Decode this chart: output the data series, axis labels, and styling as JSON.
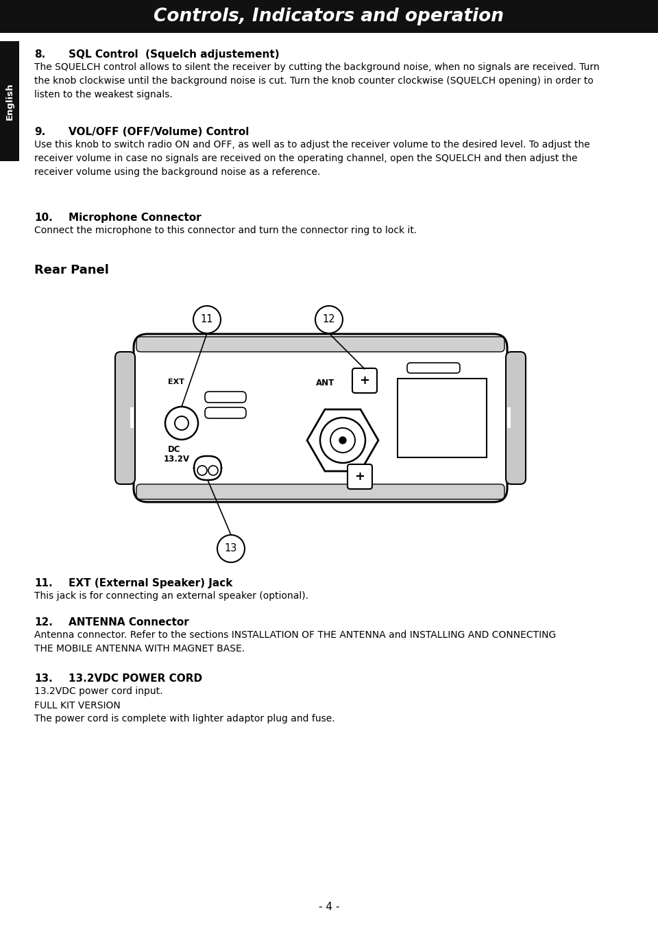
{
  "title": "Controls, Indicators and operation",
  "title_bg": "#111111",
  "title_color": "#ffffff",
  "page_bg": "#ffffff",
  "sidebar_bg": "#111111",
  "sidebar_text": "English",
  "page_number": "- 4 -",
  "sec8_heading": "SQL Control  (Squelch adjustement)",
  "sec8_body": "The SQUELCH control allows to silent the receiver by cutting the background noise, when no signals are received. Turn\nthe knob clockwise until the background noise is cut. Turn the knob counter clockwise (SQUELCH opening) in order to\nlisten to the weakest signals.",
  "sec9_heading": "VOL/OFF (OFF/Volume) Control",
  "sec9_body": "Use this knob to switch radio ON and OFF, as well as to adjust the receiver volume to the desired level. To adjust the\nreceiver volume in case no signals are received on the operating channel, open the SQUELCH and then adjust the\nreceiver volume using the background noise as a reference.",
  "sec10_heading": "Microphone Connector",
  "sec10_body": "Connect the microphone to this connector and turn the connector ring to lock it.",
  "rear_panel_label": "Rear Panel",
  "sec11_heading": "EXT (External Speaker) Jack",
  "sec11_body": "This jack is for connecting an external speaker (optional).",
  "sec12_heading": "ANTENNA Connector",
  "sec12_body": "Antenna connector. Refer to the sections INSTALLATION OF THE ANTENNA and INSTALLING AND CONNECTING\nTHE MOBILE ANTENNA WITH MAGNET BASE.",
  "sec13_heading": "13.2VDC POWER CORD",
  "sec13_body": "13.2VDC power cord input.",
  "sec13_extra1": "FULL KIT VERSION",
  "sec13_extra2": "The power cord is complete with lighter adaptor plug and fuse."
}
